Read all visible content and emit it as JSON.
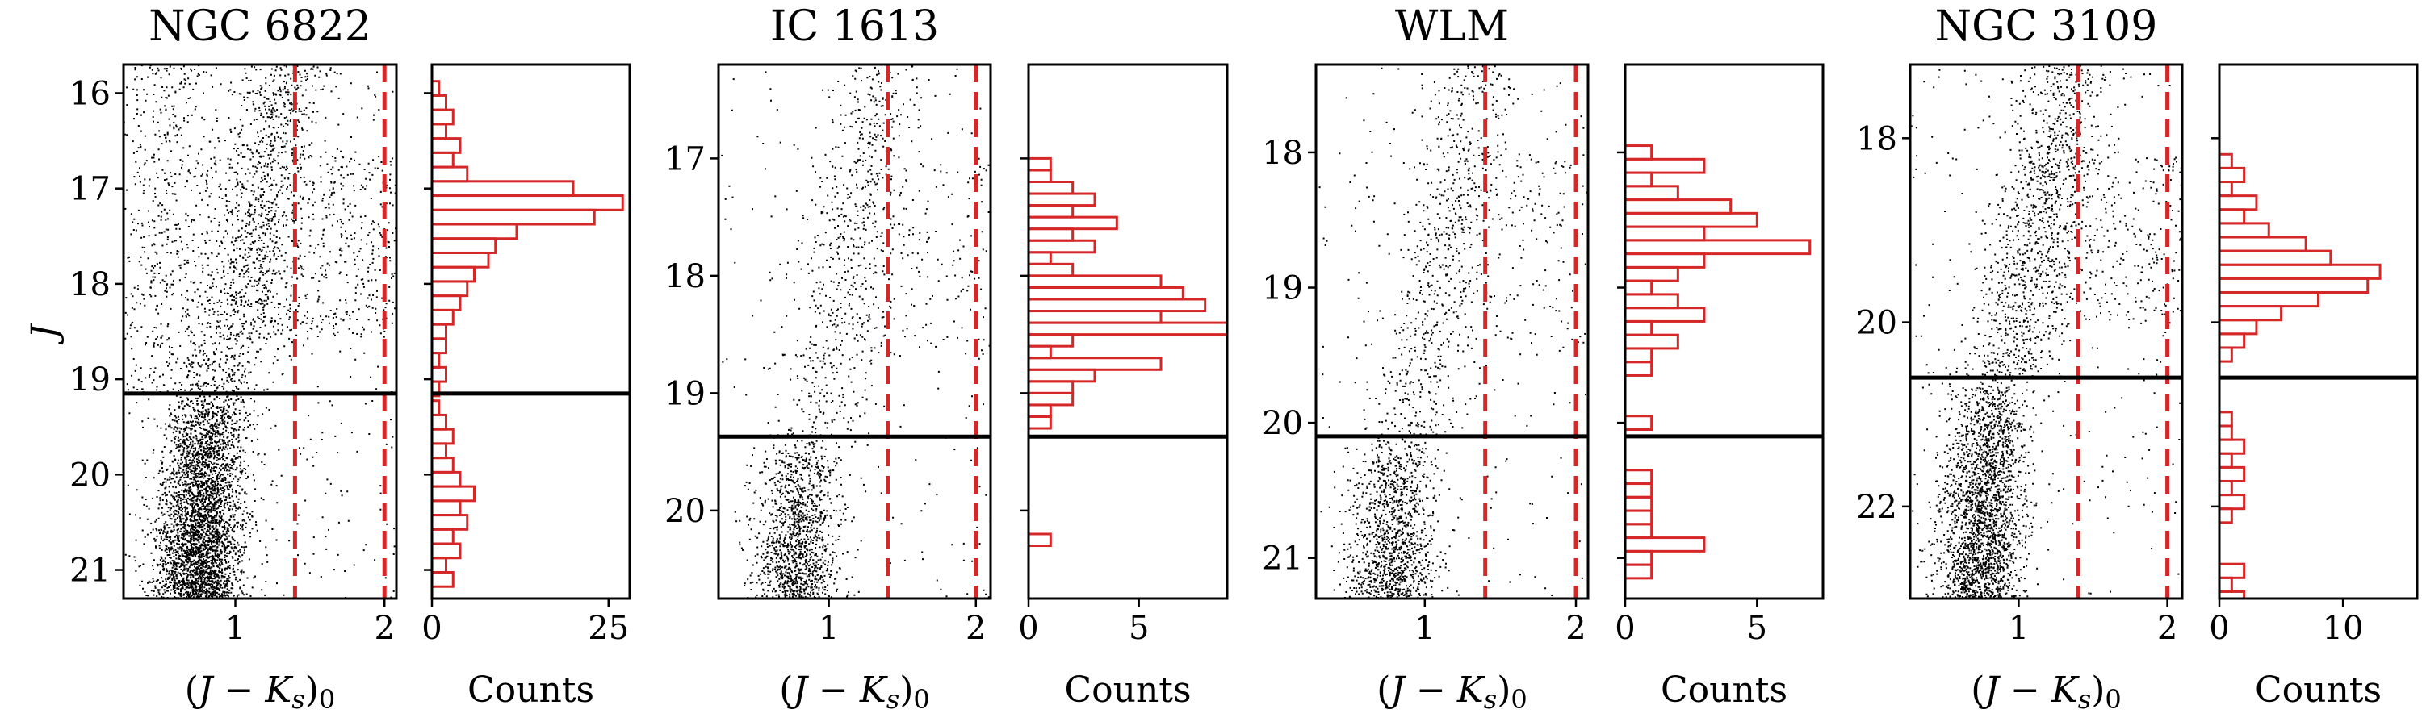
{
  "colors": {
    "points": "#000000",
    "cut": "#d62728",
    "hist": "#d62728",
    "limit": "#000000"
  },
  "figure": {
    "ylabel": "J",
    "xlabel_cmd": "(J − K_s)_0",
    "xlabel_hist": "Counts"
  },
  "chart_data": [
    {
      "type": "scatter",
      "title": "NGC 6822",
      "xlabel": "(J − Ks)0",
      "ylabel": "J",
      "xlim": [
        0.25,
        2.08
      ],
      "ylim": [
        21.3,
        15.7
      ],
      "x_ticks": [
        1,
        2
      ],
      "y_ticks": [
        16,
        17,
        18,
        19,
        20,
        21
      ],
      "x_tick_labels": [
        "1",
        "2"
      ],
      "y_tick_labels": [
        "16",
        "17",
        "18",
        "19",
        "20",
        "21"
      ],
      "color_cuts": [
        1.4,
        2.0
      ],
      "magnitude_limit": 19.15,
      "point_density": "very high",
      "hist": {
        "xlabel": "Counts",
        "xlim": [
          0,
          28
        ],
        "x_ticks": [
          0,
          25
        ],
        "x_tick_labels": [
          "0",
          "25"
        ],
        "bins_J": [
          15.95,
          16.1,
          16.25,
          16.4,
          16.55,
          16.7,
          16.85,
          17.0,
          17.15,
          17.3,
          17.45,
          17.6,
          17.75,
          17.9,
          18.05,
          18.2,
          18.35,
          18.5,
          18.65,
          18.8,
          18.95,
          19.1,
          19.3,
          19.45,
          19.6,
          19.75,
          19.9,
          20.05,
          20.2,
          20.35,
          20.5,
          20.65,
          20.8,
          20.95,
          21.1
        ],
        "bin_width": 0.15,
        "counts": [
          1,
          2,
          3,
          2,
          4,
          3,
          5,
          20,
          27,
          23,
          12,
          9,
          8,
          6,
          5,
          4,
          3,
          2,
          2,
          1,
          2,
          1,
          1,
          2,
          3,
          2,
          3,
          4,
          6,
          4,
          5,
          3,
          4,
          2,
          3
        ]
      }
    },
    {
      "type": "scatter",
      "title": "IC 1613",
      "xlabel": "(J − Ks)0",
      "ylabel": "J",
      "xlim": [
        0.25,
        2.1
      ],
      "ylim": [
        20.75,
        16.2
      ],
      "x_ticks": [
        1,
        2
      ],
      "y_ticks": [
        17,
        18,
        19,
        20
      ],
      "x_tick_labels": [
        "1",
        "2"
      ],
      "y_tick_labels": [
        "17",
        "18",
        "19",
        "20"
      ],
      "color_cuts": [
        1.4,
        2.0
      ],
      "magnitude_limit": 19.37,
      "point_density": "medium",
      "hist": {
        "xlabel": "Counts",
        "xlim": [
          0,
          9
        ],
        "x_ticks": [
          0,
          5
        ],
        "x_tick_labels": [
          "0",
          "5"
        ],
        "bins_J": [
          17.05,
          17.15,
          17.25,
          17.35,
          17.45,
          17.55,
          17.65,
          17.75,
          17.85,
          17.95,
          18.05,
          18.15,
          18.25,
          18.35,
          18.45,
          18.55,
          18.65,
          18.75,
          18.85,
          18.95,
          19.05,
          19.15,
          19.25,
          20.25
        ],
        "bin_width": 0.1,
        "counts": [
          1,
          1,
          2,
          3,
          2,
          4,
          2,
          3,
          1,
          2,
          6,
          7,
          8,
          6,
          9,
          2,
          1,
          6,
          3,
          2,
          2,
          1,
          1,
          1
        ]
      }
    },
    {
      "type": "scatter",
      "title": "WLM",
      "xlabel": "(J − Ks)0",
      "ylabel": "J",
      "xlim": [
        0.28,
        2.08
      ],
      "ylim": [
        21.3,
        17.35
      ],
      "x_ticks": [
        1,
        2
      ],
      "y_ticks": [
        18,
        19,
        20,
        21
      ],
      "x_tick_labels": [
        "1",
        "2"
      ],
      "y_tick_labels": [
        "18",
        "19",
        "20",
        "21"
      ],
      "color_cuts": [
        1.4,
        2.0
      ],
      "magnitude_limit": 20.1,
      "point_density": "medium",
      "hist": {
        "xlabel": "Counts",
        "xlim": [
          0,
          7.5
        ],
        "x_ticks": [
          0,
          5
        ],
        "x_tick_labels": [
          "0",
          "5"
        ],
        "bins_J": [
          18.0,
          18.1,
          18.2,
          18.3,
          18.4,
          18.5,
          18.6,
          18.7,
          18.8,
          18.9,
          19.0,
          19.1,
          19.2,
          19.3,
          19.4,
          19.5,
          19.6,
          20.0,
          20.4,
          20.5,
          20.6,
          20.7,
          20.8,
          20.9,
          21.0,
          21.1
        ],
        "bin_width": 0.1,
        "counts": [
          1,
          3,
          1,
          2,
          4,
          5,
          3,
          7,
          3,
          2,
          1,
          2,
          3,
          1,
          2,
          1,
          1,
          1,
          1,
          1,
          1,
          1,
          1,
          3,
          1,
          1
        ]
      }
    },
    {
      "type": "scatter",
      "title": "NGC 3109",
      "xlabel": "(J − Ks)0",
      "ylabel": "J",
      "xlim": [
        0.27,
        2.1
      ],
      "ylim": [
        23.0,
        17.2
      ],
      "x_ticks": [
        1,
        2
      ],
      "y_ticks": [
        18,
        20,
        22
      ],
      "x_tick_labels": [
        "1",
        "2"
      ],
      "y_tick_labels": [
        "18",
        "20",
        "22"
      ],
      "color_cuts": [
        1.4,
        2.0
      ],
      "magnitude_limit": 20.6,
      "point_density": "high",
      "hist": {
        "xlabel": "Counts",
        "xlim": [
          0,
          16
        ],
        "x_ticks": [
          0,
          10
        ],
        "x_tick_labels": [
          "0",
          "10"
        ],
        "bins_J": [
          18.25,
          18.4,
          18.55,
          18.7,
          18.85,
          19.0,
          19.15,
          19.3,
          19.45,
          19.6,
          19.75,
          19.9,
          20.05,
          20.2,
          20.35,
          21.05,
          21.2,
          21.35,
          21.5,
          21.65,
          21.8,
          21.95,
          22.1,
          22.7,
          22.85,
          23.0
        ],
        "bin_width": 0.15,
        "counts": [
          1,
          2,
          1,
          3,
          2,
          4,
          7,
          9,
          13,
          12,
          8,
          5,
          3,
          2,
          1,
          1,
          1,
          2,
          1,
          2,
          1,
          2,
          1,
          2,
          1,
          2
        ]
      }
    }
  ]
}
